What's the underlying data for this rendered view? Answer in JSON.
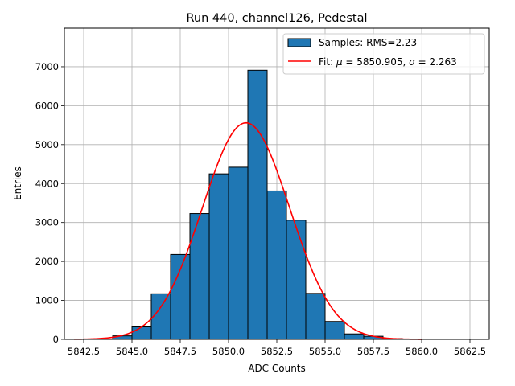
{
  "chart_data": {
    "type": "histogram",
    "title": "Run 440, channel126, Pedestal",
    "xlabel": "ADC Counts",
    "ylabel": "Entries",
    "xlim": [
      5841.5,
      5863.5
    ],
    "ylim": [
      0,
      7990
    ],
    "xticks": [
      5842.5,
      5845.0,
      5847.5,
      5850.0,
      5852.5,
      5855.0,
      5857.5,
      5860.0,
      5862.5
    ],
    "xtick_labels": [
      "5842.5",
      "5845.0",
      "5847.5",
      "5850.0",
      "5852.5",
      "5855.0",
      "5857.5",
      "5860.0",
      "5862.5"
    ],
    "yticks": [
      0,
      1000,
      2000,
      3000,
      4000,
      5000,
      6000,
      7000
    ],
    "ytick_labels": [
      "0",
      "1000",
      "2000",
      "3000",
      "4000",
      "5000",
      "6000",
      "7000"
    ],
    "grid": true,
    "legend_position": "top-right",
    "series": [
      {
        "name": "Samples: RMS=2.23",
        "kind": "bar",
        "color": "#1f77b4",
        "edge_color": "#000000",
        "bin_width": 1,
        "bins": [
          {
            "left": 5843,
            "value": 10
          },
          {
            "left": 5844,
            "value": 90
          },
          {
            "left": 5845,
            "value": 320
          },
          {
            "left": 5846,
            "value": 1170
          },
          {
            "left": 5847,
            "value": 2180
          },
          {
            "left": 5848,
            "value": 3230
          },
          {
            "left": 5849,
            "value": 4250
          },
          {
            "left": 5850,
            "value": 4420
          },
          {
            "left": 5851,
            "value": 6910
          },
          {
            "left": 5852,
            "value": 3810
          },
          {
            "left": 5853,
            "value": 3060
          },
          {
            "left": 5854,
            "value": 1180
          },
          {
            "left": 5855,
            "value": 460
          },
          {
            "left": 5856,
            "value": 140
          },
          {
            "left": 5857,
            "value": 80
          },
          {
            "left": 5858,
            "value": 20
          },
          {
            "left": 5859,
            "value": 5
          }
        ]
      },
      {
        "name": "Fit: μ = 5850.905, σ = 2.263",
        "name_parts": {
          "prefix": "Fit: ",
          "mu_symbol": "μ",
          "mu_text": " = 5850.905, ",
          "sigma_symbol": "σ",
          "sigma_text": " = 2.263"
        },
        "kind": "line",
        "color": "#ff0000",
        "gaussian": {
          "amplitude": 5560,
          "mean": 5850.905,
          "sigma": 2.263
        },
        "x_range": [
          5842.0,
          5860.0
        ]
      }
    ]
  }
}
